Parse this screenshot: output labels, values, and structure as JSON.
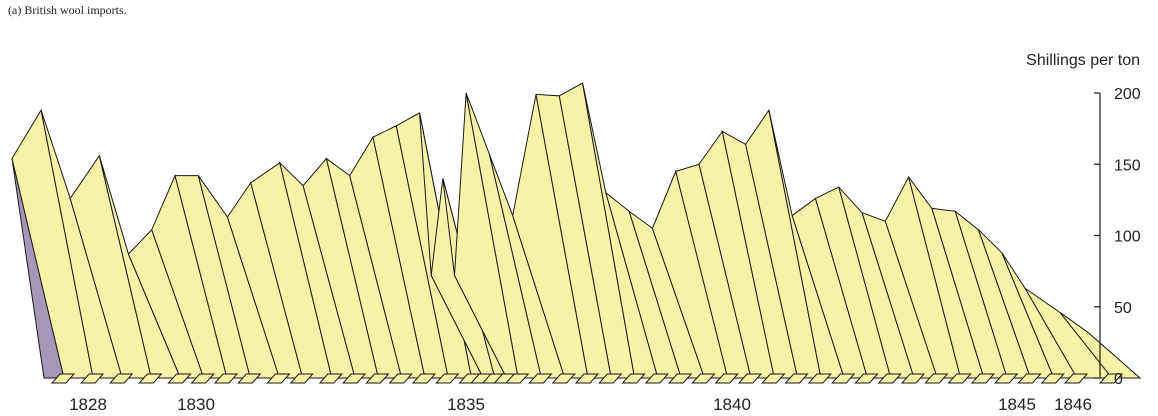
{
  "caption": "(a) British wool imports.",
  "chart_data": {
    "type": "area",
    "title": "(a) British wool imports.",
    "ylabel": "Shillings per ton",
    "ylim": [
      0,
      200
    ],
    "yticks": [
      0,
      50,
      100,
      150,
      200
    ],
    "xticks": [
      "1828",
      "1830",
      "1835",
      "1840",
      "1845",
      "1846"
    ],
    "colors": {
      "front": "#f6f3a8",
      "back": "#a597b8",
      "stroke": "#1a1a1a"
    },
    "series": [
      {
        "values": [
          [
            1828.0,
            154
          ],
          [
            1828.5,
            188
          ],
          [
            1829.0,
            126
          ],
          [
            1829.5,
            156
          ],
          [
            1830.0,
            87
          ],
          [
            1830.4,
            104
          ],
          [
            1830.8,
            142
          ],
          [
            1831.2,
            142
          ],
          [
            1831.7,
            113
          ],
          [
            1832.1,
            137
          ],
          [
            1832.6,
            151
          ],
          [
            1833.0,
            135
          ],
          [
            1833.4,
            154
          ],
          [
            1833.8,
            142
          ],
          [
            1834.2,
            169
          ],
          [
            1834.6,
            177
          ],
          [
            1835.0,
            186
          ],
          [
            1835.2,
            72
          ],
          [
            1835.4,
            140
          ],
          [
            1835.6,
            72
          ],
          [
            1835.8,
            200
          ],
          [
            1836.2,
            157
          ],
          [
            1836.6,
            114
          ],
          [
            1837.0,
            199
          ],
          [
            1837.4,
            198
          ],
          [
            1837.8,
            207
          ],
          [
            1838.2,
            130
          ],
          [
            1838.6,
            117
          ],
          [
            1839.0,
            105
          ],
          [
            1839.4,
            145
          ],
          [
            1839.8,
            150
          ],
          [
            1840.2,
            173
          ],
          [
            1840.6,
            164
          ],
          [
            1841.0,
            188
          ],
          [
            1841.4,
            114
          ],
          [
            1841.8,
            126
          ],
          [
            1842.2,
            134
          ],
          [
            1842.6,
            116
          ],
          [
            1843.0,
            110
          ],
          [
            1843.4,
            141
          ],
          [
            1843.8,
            119
          ],
          [
            1844.2,
            117
          ],
          [
            1844.6,
            104
          ],
          [
            1845.0,
            88
          ],
          [
            1845.4,
            63
          ],
          [
            1846.0,
            46
          ]
        ]
      }
    ]
  }
}
